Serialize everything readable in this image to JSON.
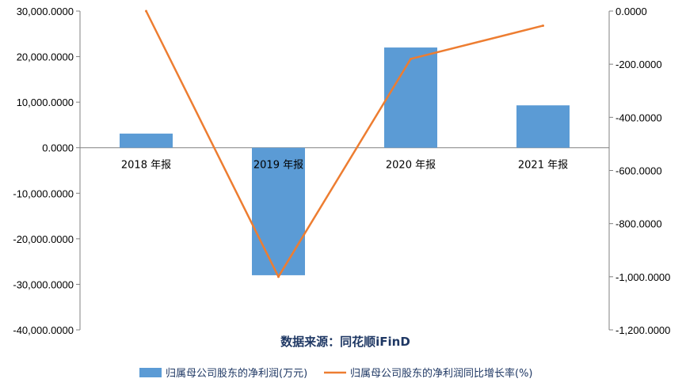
{
  "chart_data": {
    "type": "bar",
    "categories": [
      "2018 年报",
      "2019 年报",
      "2020 年报",
      "2021 年报"
    ],
    "series": [
      {
        "name": "归属母公司股东的净利润(万元)",
        "type": "bar",
        "axis": "left",
        "color": "#5b9bd5",
        "values": [
          3100,
          -28000,
          22000,
          9300
        ]
      },
      {
        "name": "归属母公司股东的净利润同比增长率(%)",
        "type": "line",
        "axis": "right",
        "color": "#ed7d31",
        "values": [
          0,
          -1000,
          -180,
          -55
        ]
      }
    ],
    "y_left": {
      "ylim": [
        -40000,
        30000
      ],
      "ticks": [
        "30,000.0000",
        "20,000.0000",
        "10,000.0000",
        "0.0000",
        "-10,000.0000",
        "-20,000.0000",
        "-30,000.0000",
        "-40,000.0000"
      ]
    },
    "y_right": {
      "ylim": [
        -1200,
        0
      ],
      "ticks": [
        "0.0000",
        "-200.0000",
        "-400.0000",
        "-600.0000",
        "-800.0000",
        "-1,000.0000",
        "-1,200.0000"
      ]
    },
    "grid": false,
    "legend_position": "bottom",
    "source_note": "数据来源：同花顺iFinD"
  }
}
